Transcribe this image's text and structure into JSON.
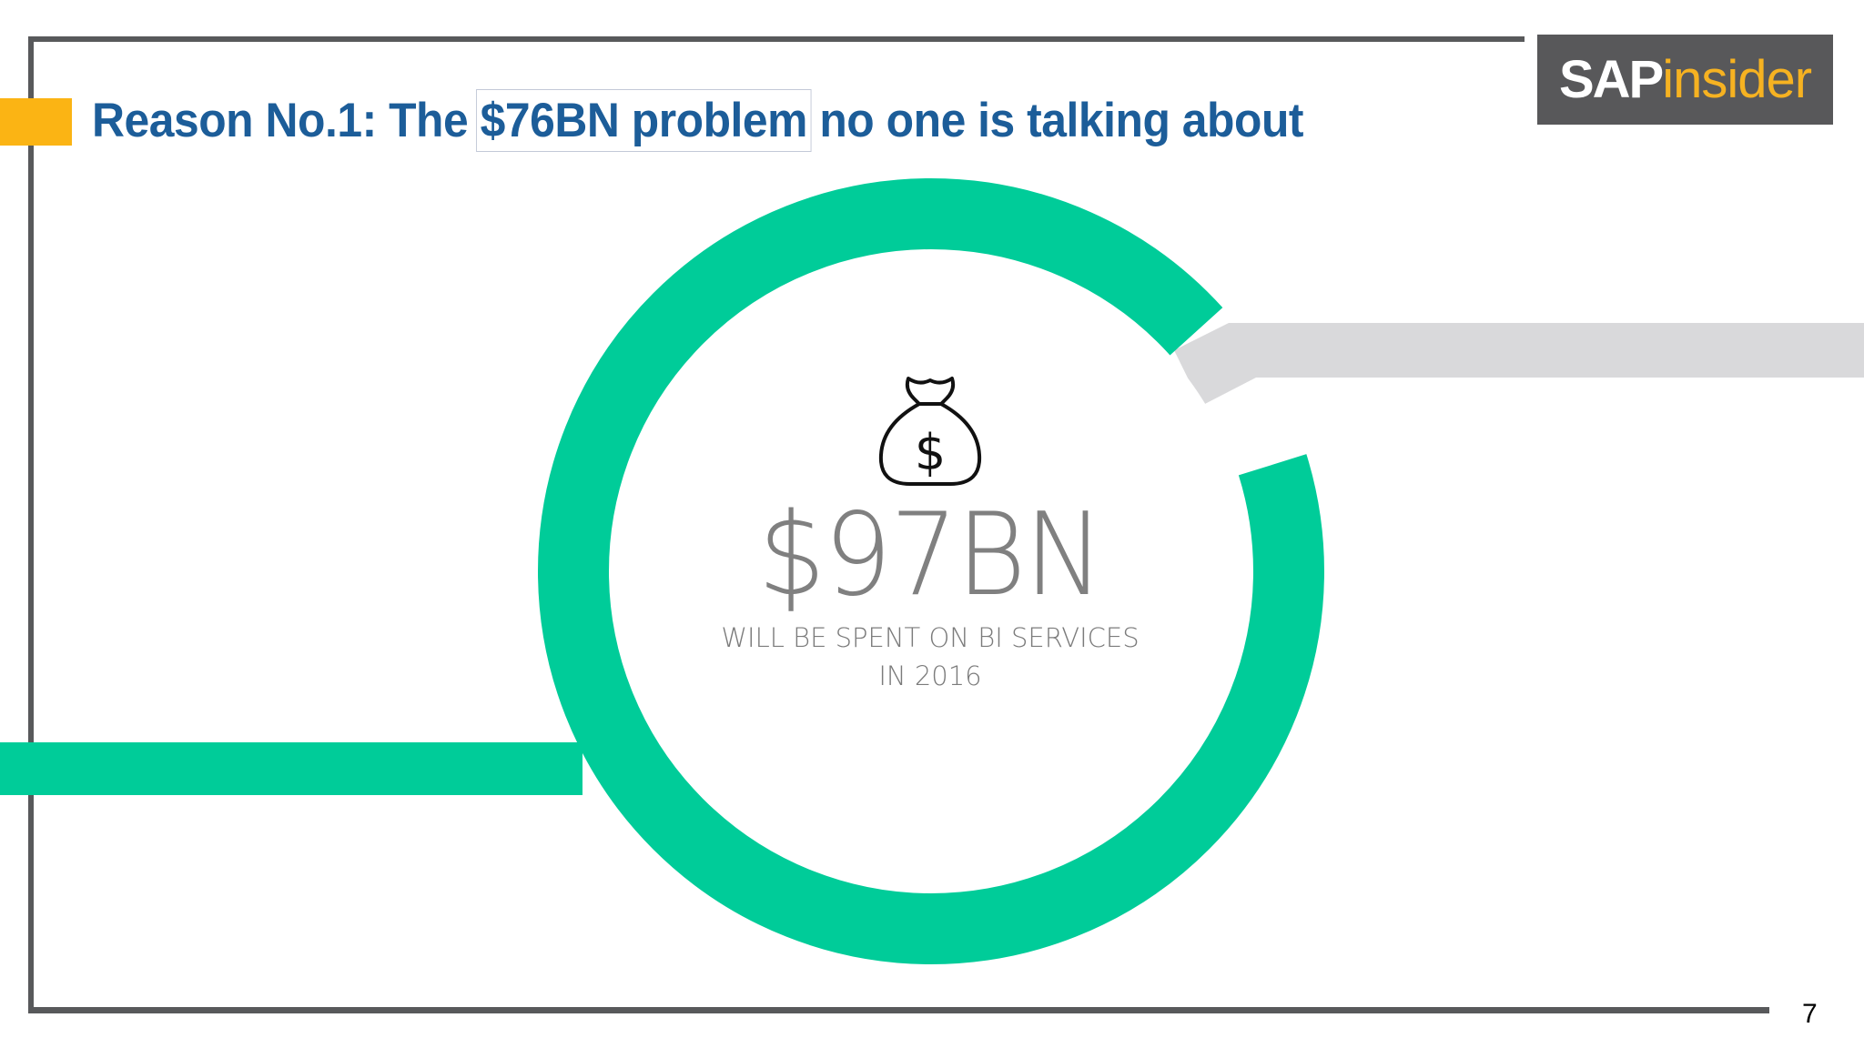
{
  "slide": {
    "title_prefix": "Reason No.1: The ",
    "title_highlight": "$76BN problem",
    "title_suffix": " no one is talking about",
    "logo": {
      "sap": "SAP",
      "insider": "insider"
    },
    "stat": {
      "value": "$97BN",
      "caption_line1": "WILL BE SPENT ON BI SERVICES",
      "caption_line2": "IN 2016",
      "icon": "money-bag-icon"
    },
    "page_number": "7"
  },
  "colors": {
    "title": "#1c5d99",
    "accent": "#fbb414",
    "ring": "#00cc99",
    "grey_bar": "#d9d9db",
    "frame": "#58595b",
    "logo_bg": "#58585a",
    "logo_insider": "#f6b221"
  }
}
